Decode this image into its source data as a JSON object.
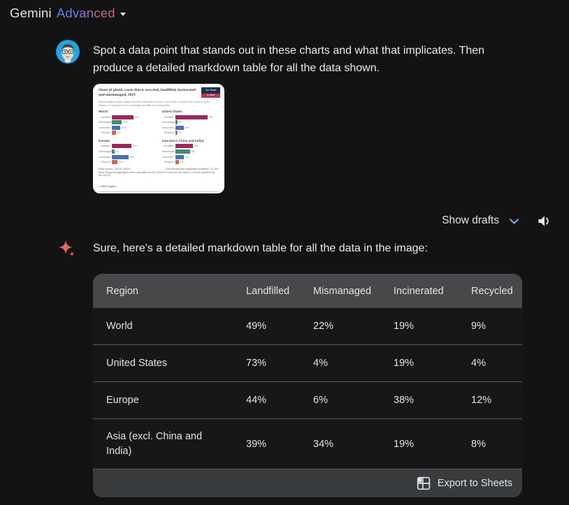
{
  "header": {
    "brand": "Gemini",
    "tier": "Advanced"
  },
  "user_message": {
    "text": "Spot a data point that stands out in these charts and what that implicates. Then produce a detailed markdown table for all the data shown."
  },
  "attachment": {
    "title": "Share of plastic waste that is recycled, landfilled, incinerated and mismanaged, 2019",
    "subtitle": "Mismanaged plastic waste includes materials burned in open pits, dumped into seas or open waters, or disposed of in unsanitary landfills and dumpsites.",
    "logo_lines": [
      "Our World",
      "in Data"
    ],
    "data_source": "Data source: OECD (2023)",
    "attribution": "OurWorldInData.org/plastic-pollution | CC BY",
    "note": "Note: Regional aggregates were calculated by Our World in Data and are based on those specified by the OECD.",
    "footnote_label": "1. OECD regions:",
    "chart_data": {
      "type": "bar",
      "orientation": "horizontal",
      "categories": [
        "Landfilled",
        "Mismanaged",
        "Incinerated",
        "Recycled"
      ],
      "colors": {
        "Landfilled": "#a1245e",
        "Mismanaged": "#418a78",
        "Incinerated": "#4472b8",
        "Recycled": "#cc6b4d"
      },
      "unit": "%",
      "xlim": [
        0,
        80
      ],
      "panels": [
        {
          "region": "World",
          "values": [
            49,
            22,
            19,
            9
          ]
        },
        {
          "region": "United States",
          "values": [
            73,
            4,
            19,
            4
          ]
        },
        {
          "region": "Europe",
          "values": [
            44,
            6,
            38,
            12
          ]
        },
        {
          "region": "Asia (excl. China and India)",
          "values": [
            39,
            34,
            19,
            8
          ]
        }
      ]
    }
  },
  "actions": {
    "show_drafts": "Show drafts"
  },
  "response": {
    "intro": "Sure, here's a detailed markdown table for all the data in the image:"
  },
  "data_table": {
    "columns": [
      "Region",
      "Landfilled",
      "Mismanaged",
      "Incinerated",
      "Recycled"
    ],
    "rows": [
      [
        "World",
        "49%",
        "22%",
        "19%",
        "9%"
      ],
      [
        "United States",
        "73%",
        "4%",
        "19%",
        "4%"
      ],
      [
        "Europe",
        "44%",
        "6%",
        "38%",
        "12%"
      ],
      [
        "Asia (excl. China and India)",
        "39%",
        "34%",
        "19%",
        "8%"
      ]
    ],
    "export_label": "Export to Sheets"
  },
  "colors": {
    "page_background": "#131314",
    "text_primary": "#e3e3e3",
    "brand_gradient": [
      "#5684f0",
      "#9b72cb",
      "#d6645d"
    ],
    "avatar_background": "#1ea7e8",
    "table_header_background": "#47484a",
    "table_row_background": "#17171a",
    "table_footer_background": "#3a3b3d",
    "drafts_chevron": "#8ab4f8",
    "sparkle_gradient": [
      "#9f6ab0",
      "#e0704e",
      "#d4524e"
    ]
  }
}
